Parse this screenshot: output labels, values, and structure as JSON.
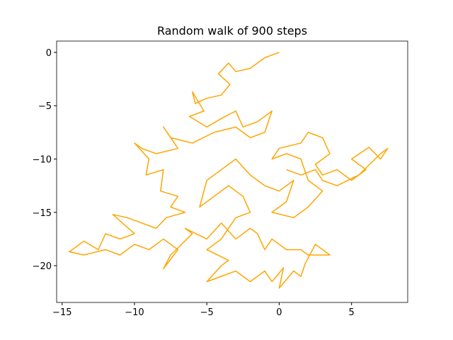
{
  "chart_data": {
    "type": "line",
    "title": "Random walk of 900 steps",
    "color": "#ffa500",
    "x": [
      0,
      -1,
      -2,
      -3,
      -3.5,
      -4.2,
      -3.4,
      -4,
      -5,
      -5.8,
      -6,
      -5.2,
      -6.2,
      -5,
      -4,
      -3,
      -2.5,
      -1.5,
      -0.5,
      -1,
      -2,
      -3,
      -4.5,
      -6,
      -7.5,
      -8,
      -7,
      -8.5,
      -9.5,
      -10,
      -9,
      -9.2,
      -8,
      -8.2,
      -7,
      -7.5,
      -6.5,
      -7.8,
      -8.5,
      -9.5,
      -10.5,
      -11.5,
      -10,
      -11,
      -12,
      -12.5,
      -13.5,
      -14.5,
      -13.5,
      -12,
      -11,
      -10,
      -9,
      -8,
      -7,
      -8,
      -7.5,
      -6,
      -6.5,
      -5,
      -4,
      -3,
      -2,
      -1.5,
      -1,
      -0.5,
      0.5,
      1.5,
      2,
      3.5,
      2.5,
      1.8,
      1.5,
      1,
      0,
      0.3,
      -0.5,
      -1,
      -2,
      -3,
      -4,
      -5,
      -4,
      -3.5,
      -5,
      -4,
      -3,
      -2,
      -2.5,
      -3.5,
      -4.5,
      -5.5,
      -5,
      -4,
      -3,
      -2,
      -1,
      0,
      1,
      0.5,
      -0.5,
      1,
      2,
      3,
      2,
      1.5,
      0.5,
      -0.5,
      0,
      1.5,
      2,
      3,
      3.5,
      2.5,
      3,
      4,
      5,
      6,
      5,
      6.2,
      7,
      7.5,
      7,
      5.5,
      4,
      3,
      2.5,
      1.5,
      0.5
    ],
    "values": [
      0,
      -0.5,
      -1.5,
      -1.8,
      -1,
      -2,
      -3,
      -4,
      -4.3,
      -4.8,
      -3.7,
      -5.5,
      -6,
      -7,
      -6.2,
      -5.5,
      -7,
      -6.5,
      -5.5,
      -7.5,
      -8,
      -7,
      -7.5,
      -8.5,
      -8,
      -7,
      -9,
      -9.5,
      -9,
      -8.5,
      -10,
      -11.5,
      -11,
      -13,
      -13.5,
      -14.5,
      -15,
      -15.5,
      -16.5,
      -16,
      -15.5,
      -15.2,
      -17,
      -17.5,
      -17,
      -18.5,
      -17.7,
      -18.7,
      -19,
      -18.5,
      -19,
      -18,
      -18.5,
      -17.5,
      -18.5,
      -20.3,
      -19,
      -17,
      -16.5,
      -17.5,
      -16,
      -17.5,
      -16.5,
      -17,
      -18.5,
      -17.5,
      -18.5,
      -18.5,
      -19,
      -19,
      -18,
      -19.8,
      -21,
      -20.5,
      -22.1,
      -20.2,
      -21.5,
      -20.5,
      -21.5,
      -20.5,
      -21,
      -21.5,
      -20,
      -19.5,
      -18.5,
      -17.5,
      -15.5,
      -15,
      -13.5,
      -12.5,
      -13.5,
      -14.5,
      -12,
      -11,
      -10,
      -11.5,
      -12.5,
      -13,
      -12,
      -14,
      -15,
      -15.5,
      -14.5,
      -13,
      -12,
      -10,
      -9.5,
      -10,
      -9,
      -8.5,
      -7.5,
      -8,
      -9.5,
      -10.5,
      -11.5,
      -11,
      -12,
      -11,
      -10,
      -8.9,
      -10,
      -9,
      -9.5,
      -11.5,
      -12.5,
      -12,
      -11,
      -11.5,
      -11
    ],
    "xlim": [
      -15.38,
      8.88
    ],
    "ylim": [
      -23.45,
      1.06
    ],
    "xticks": [
      {
        "value": -15,
        "label": "−15"
      },
      {
        "value": -10,
        "label": "−10"
      },
      {
        "value": -5,
        "label": "−5"
      },
      0,
      5
    ],
    "yticks": [
      0,
      {
        "value": -5,
        "label": "−5"
      },
      {
        "value": -10,
        "label": "−10"
      },
      {
        "value": -15,
        "label": "−15"
      },
      {
        "value": -20,
        "label": "−20"
      }
    ]
  }
}
